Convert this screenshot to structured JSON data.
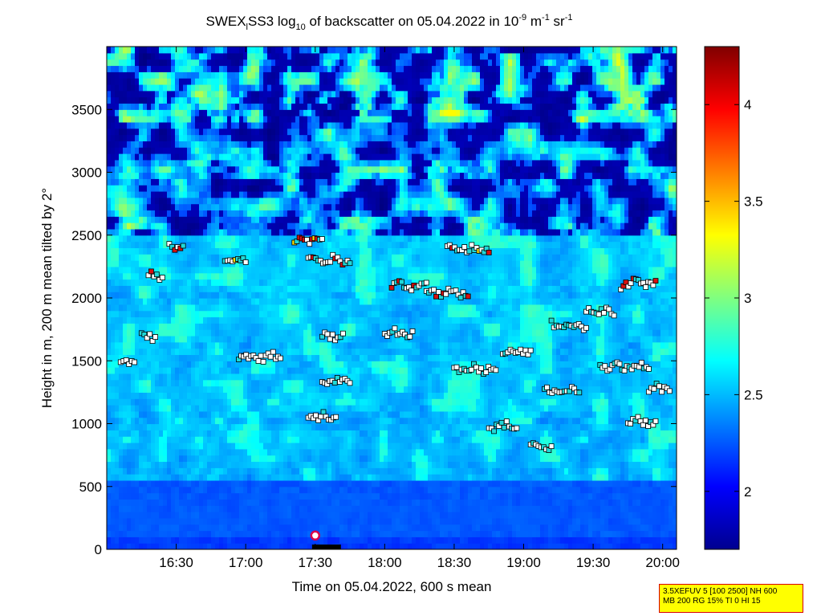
{
  "chart_data": {
    "type": "heatmap",
    "title": {
      "part1": "SWEX",
      "sub1": "l",
      "part2": "SS3 log",
      "sub2": "10",
      "part3": " of backscatter on 05.04.2022 in 10",
      "sup1": "-9",
      "part4": " m",
      "sup2": "-1",
      "part5": " sr",
      "sup3": "-1"
    },
    "xlabel": "Time on 05.04.2022, 600 s mean",
    "ylabel": "Height in m, 200 m mean tilted by 2°",
    "x_ticks": [
      "16:30",
      "17:00",
      "17:30",
      "18:00",
      "18:30",
      "19:00",
      "19:30",
      "20:00"
    ],
    "y_ticks": [
      "0",
      "500",
      "1000",
      "1500",
      "2000",
      "2500",
      "3000",
      "3500"
    ],
    "xlim_hours": [
      16.0,
      20.1
    ],
    "ylim": [
      0,
      4000
    ],
    "colorbar": {
      "ticks": [
        "2",
        "2.5",
        "3",
        "3.5",
        "4"
      ],
      "range": [
        1.7,
        4.3
      ],
      "colormap": "jet"
    },
    "structure": {
      "surface_layer": {
        "height_top": 550,
        "value": 2.25
      },
      "boundary_layer_top": 2500,
      "free_troposphere_low": 1.85,
      "upper_layer_value": 2.8
    },
    "detected_layers": [
      {
        "t_start": 16.1,
        "t_end": 16.2,
        "height": 1480
      },
      {
        "t_start": 16.25,
        "t_end": 16.35,
        "height": 1690
      },
      {
        "t_start": 16.3,
        "t_end": 16.4,
        "height": 2180
      },
      {
        "t_start": 16.45,
        "t_end": 16.55,
        "height": 2400
      },
      {
        "t_start": 16.85,
        "t_end": 17.0,
        "height": 2300
      },
      {
        "t_start": 16.95,
        "t_end": 17.25,
        "height": 1530
      },
      {
        "t_start": 17.35,
        "t_end": 17.55,
        "height": 2470
      },
      {
        "t_start": 17.45,
        "t_end": 17.75,
        "height": 2300
      },
      {
        "t_start": 17.55,
        "t_end": 17.7,
        "height": 1700
      },
      {
        "t_start": 17.55,
        "t_end": 17.75,
        "height": 1340
      },
      {
        "t_start": 17.45,
        "t_end": 17.65,
        "height": 1050
      },
      {
        "t_start": 18.0,
        "t_end": 18.2,
        "height": 1720
      },
      {
        "t_start": 18.05,
        "t_end": 18.3,
        "height": 2100
      },
      {
        "t_start": 18.3,
        "t_end": 18.6,
        "height": 2040
      },
      {
        "t_start": 18.45,
        "t_end": 18.75,
        "height": 2380
      },
      {
        "t_start": 18.5,
        "t_end": 18.8,
        "height": 1440
      },
      {
        "t_start": 18.75,
        "t_end": 18.95,
        "height": 980
      },
      {
        "t_start": 18.85,
        "t_end": 19.05,
        "height": 1570
      },
      {
        "t_start": 19.05,
        "t_end": 19.2,
        "height": 820
      },
      {
        "t_start": 19.15,
        "t_end": 19.4,
        "height": 1250
      },
      {
        "t_start": 19.2,
        "t_end": 19.45,
        "height": 1780
      },
      {
        "t_start": 19.45,
        "t_end": 19.65,
        "height": 1890
      },
      {
        "t_start": 19.55,
        "t_end": 19.9,
        "height": 1450
      },
      {
        "t_start": 19.7,
        "t_end": 19.95,
        "height": 2110
      },
      {
        "t_start": 19.75,
        "t_end": 19.95,
        "height": 1010
      },
      {
        "t_start": 19.9,
        "t_end": 20.05,
        "height": 1280
      }
    ],
    "marker": {
      "time": 17.5,
      "height": 110,
      "color": "#d8004c"
    }
  },
  "footnote": {
    "line1": "3.5XEFUV 5 [100 2500] NH 600",
    "line2": "MB 200 RG 15% TI 0 HI 15"
  }
}
